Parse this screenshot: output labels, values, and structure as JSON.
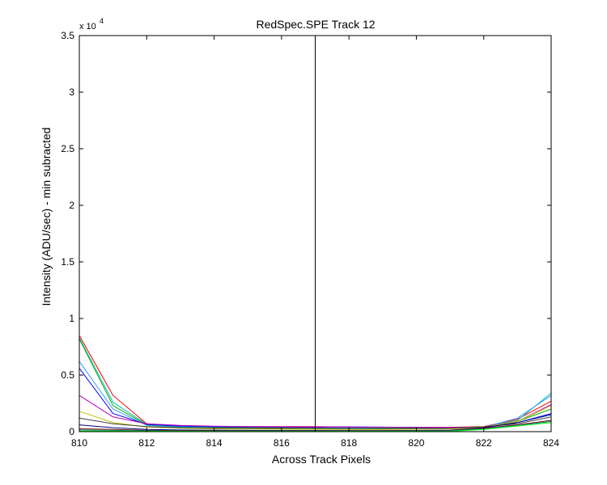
{
  "chart_data": {
    "type": "line",
    "title": "RedSpec.SPE   Track 12",
    "xlabel": "Across Track Pixels",
    "ylabel": "Intensity (ADU/sec) - min subracted",
    "exponent_label": "x 10",
    "exponent_power": "4",
    "xlim": [
      810,
      824
    ],
    "ylim": [
      0,
      35000
    ],
    "xticks": [
      810,
      812,
      814,
      816,
      818,
      820,
      822,
      824
    ],
    "yticks": [
      0,
      5000,
      10000,
      15000,
      20000,
      25000,
      30000,
      35000
    ],
    "ytick_labels": [
      "0",
      "0.5",
      "1",
      "1.5",
      "2",
      "2.5",
      "3",
      "3.5"
    ],
    "grid": false,
    "legend": "none",
    "vertical_line": {
      "x": 817,
      "color": "#000000"
    },
    "x": [
      810,
      811,
      812,
      813,
      814,
      815,
      816,
      817,
      818,
      819,
      820,
      821,
      822,
      823,
      824
    ],
    "series": [
      {
        "color": "#ff0000",
        "values": [
          8500,
          3200,
          700,
          500,
          450,
          450,
          450,
          450,
          400,
          380,
          360,
          380,
          450,
          1100,
          2700
        ]
      },
      {
        "color": "#00bfbf",
        "values": [
          8300,
          2600,
          650,
          450,
          400,
          380,
          380,
          360,
          330,
          320,
          300,
          320,
          400,
          1000,
          3400
        ]
      },
      {
        "color": "#00aa00",
        "values": [
          8200,
          2300,
          600,
          400,
          350,
          350,
          320,
          300,
          280,
          300,
          320,
          350,
          420,
          900,
          2000
        ]
      },
      {
        "color": "#3399ff",
        "values": [
          6200,
          2000,
          550,
          380,
          330,
          300,
          280,
          270,
          260,
          260,
          270,
          300,
          380,
          1200,
          3200
        ]
      },
      {
        "color": "#0000ff",
        "values": [
          5600,
          1600,
          650,
          500,
          450,
          420,
          400,
          380,
          420,
          400,
          380,
          360,
          380,
          800,
          1600
        ]
      },
      {
        "color": "#bf00bf",
        "values": [
          3200,
          1300,
          700,
          550,
          480,
          450,
          430,
          420,
          400,
          390,
          380,
          370,
          400,
          900,
          2400
        ]
      },
      {
        "color": "#bfbf00",
        "values": [
          1800,
          800,
          400,
          300,
          250,
          230,
          220,
          210,
          200,
          200,
          220,
          240,
          380,
          900,
          2300
        ]
      },
      {
        "color": "#404040",
        "values": [
          1200,
          700,
          450,
          350,
          320,
          300,
          290,
          280,
          280,
          270,
          280,
          300,
          420,
          700,
          1300
        ]
      },
      {
        "color": "#000080",
        "values": [
          600,
          350,
          200,
          150,
          130,
          120,
          110,
          110,
          100,
          100,
          110,
          130,
          350,
          800,
          1500
        ]
      },
      {
        "color": "#800000",
        "values": [
          250,
          200,
          120,
          100,
          90,
          80,
          80,
          80,
          80,
          80,
          90,
          100,
          300,
          600,
          1000
        ]
      },
      {
        "color": "#008080",
        "values": [
          150,
          120,
          80,
          60,
          50,
          50,
          50,
          50,
          50,
          50,
          60,
          80,
          250,
          550,
          900
        ]
      },
      {
        "color": "#00ff00",
        "values": [
          50,
          50,
          40,
          40,
          30,
          30,
          30,
          30,
          30,
          30,
          30,
          40,
          200,
          500,
          800
        ]
      }
    ]
  }
}
